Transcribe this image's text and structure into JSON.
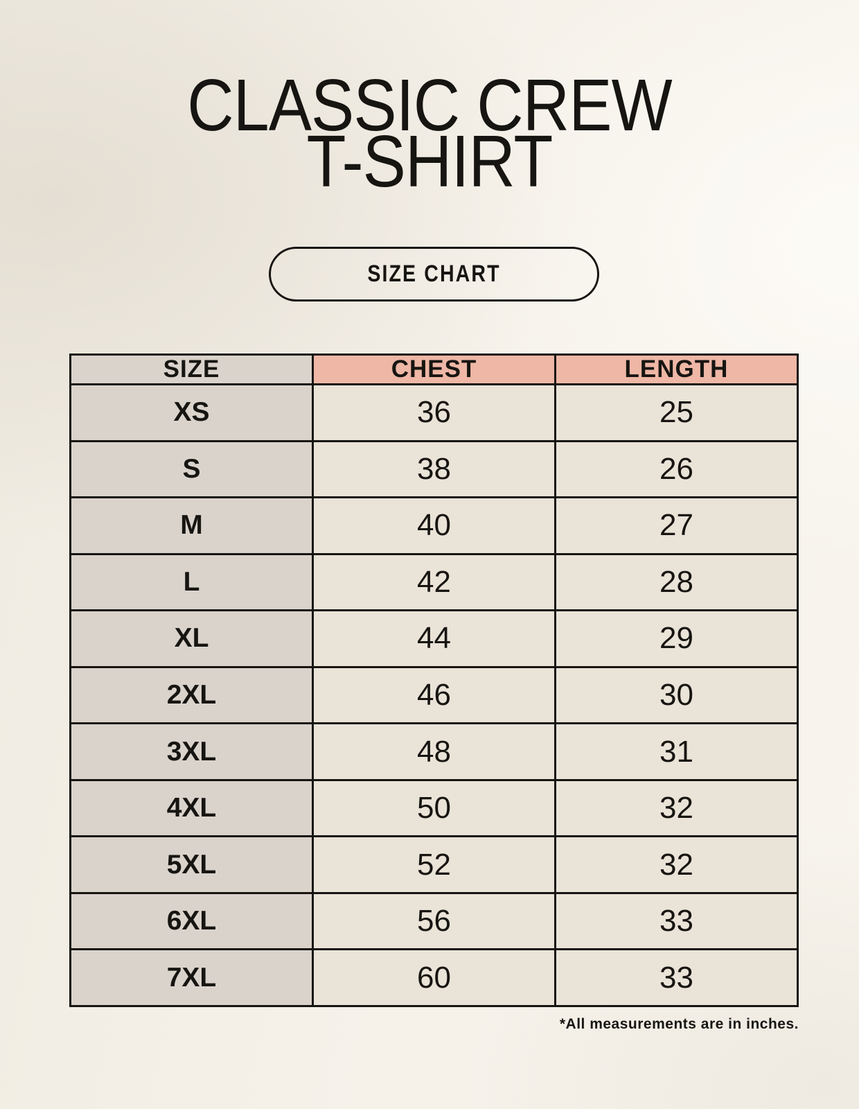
{
  "page": {
    "title_line1": "CLASSIC CREW",
    "title_line2": "T-SHIRT",
    "size_chart_badge": "SIZE CHART"
  },
  "chart_data": {
    "type": "table",
    "title": "CLASSIC CREW T-SHIRT",
    "subtitle": "SIZE CHART",
    "columns": [
      "SIZE",
      "CHEST",
      "LENGTH"
    ],
    "rows": [
      [
        "XS",
        "36",
        "25"
      ],
      [
        "S",
        "38",
        "26"
      ],
      [
        "M",
        "40",
        "27"
      ],
      [
        "L",
        "42",
        "28"
      ],
      [
        "XL",
        "44",
        "29"
      ],
      [
        "2XL",
        "46",
        "30"
      ],
      [
        "3XL",
        "48",
        "31"
      ],
      [
        "4XL",
        "50",
        "32"
      ],
      [
        "5XL",
        "52",
        "32"
      ],
      [
        "6XL",
        "56",
        "33"
      ],
      [
        "7XL",
        "60",
        "33"
      ]
    ],
    "note": "*All measurements are in inches.",
    "units": "inches"
  },
  "colors": {
    "background": "#f4f1e9",
    "header_accent": "#eeb7a6",
    "label_cell": "#dad3cc",
    "data_cell": "#eae3d8",
    "ink": "#171511"
  }
}
